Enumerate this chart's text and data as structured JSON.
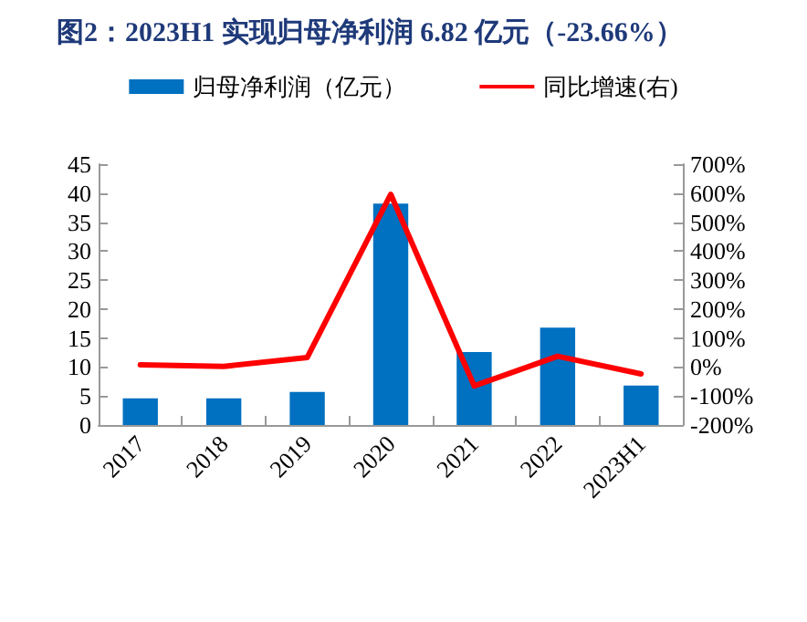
{
  "chart_data": {
    "type": "bar",
    "title": "图2：2023H1 实现归母净利润 6.82 亿元（-23.66%）",
    "categories": [
      "2017",
      "2018",
      "2019",
      "2020",
      "2021",
      "2022",
      "2023H1"
    ],
    "series": [
      {
        "name": "归母净利润（亿元）",
        "color": "#0070c0",
        "values": [
          4.6,
          4.6,
          5.7,
          38.2,
          12.6,
          16.8,
          6.82
        ]
      },
      {
        "name": "同比增速(右)",
        "type": "line",
        "axis": "y2",
        "color": "#ff0000",
        "values": [
          8,
          2,
          33,
          596,
          -65,
          37,
          -23.66
        ]
      }
    ],
    "ylim": [
      0,
      45
    ],
    "yticks": [
      0,
      5,
      10,
      15,
      20,
      25,
      30,
      35,
      40,
      45
    ],
    "y2lim": [
      -200,
      700
    ],
    "y2ticks": [
      {
        "value": -200,
        "label": "-200%"
      },
      {
        "value": -100,
        "label": "-100%"
      },
      {
        "value": 0,
        "label": "0%"
      },
      {
        "value": 100,
        "label": "100%"
      },
      {
        "value": 200,
        "label": "200%"
      },
      {
        "value": 300,
        "label": "300%"
      },
      {
        "value": 400,
        "label": "400%"
      },
      {
        "value": 500,
        "label": "500%"
      },
      {
        "value": 600,
        "label": "600%"
      },
      {
        "value": 700,
        "label": "700%"
      }
    ],
    "legend": "top",
    "grid": false,
    "marker": "none",
    "line_style": "solid"
  }
}
